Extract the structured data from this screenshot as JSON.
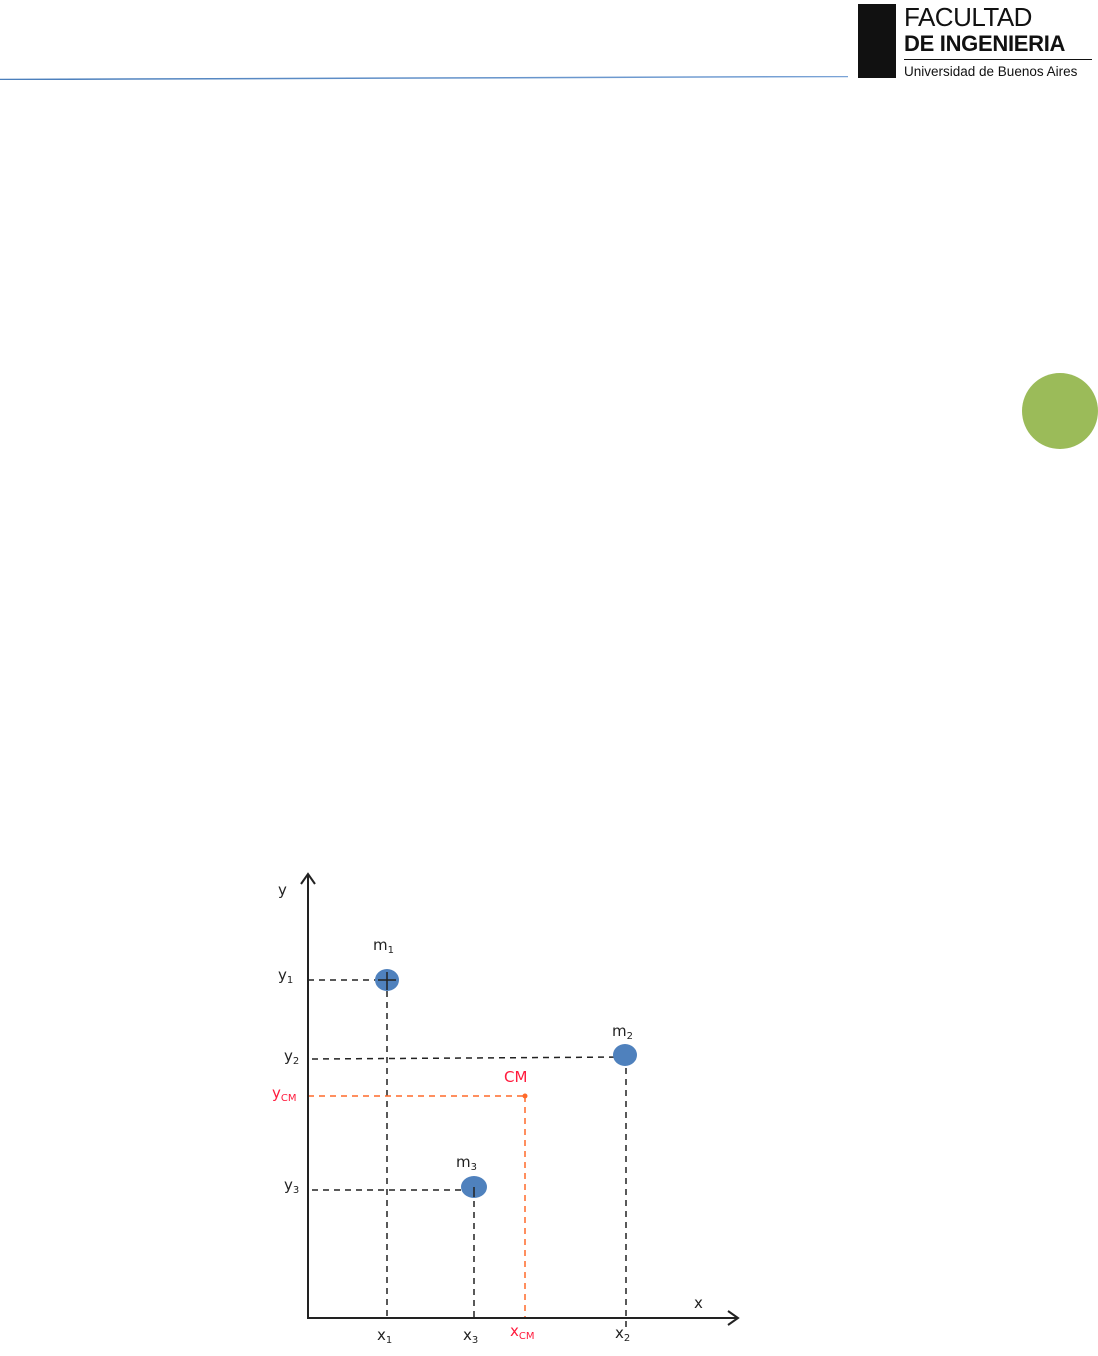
{
  "header": {
    "logo": {
      "line1": "FACULTAD",
      "line2": "DE INGENIERIA",
      "line3": "Universidad de Buenos Aires"
    },
    "line_color": "#4a7ebb"
  },
  "side_marker_color": "#9bbb59",
  "diagram": {
    "axis_x": "x",
    "axis_y": "y",
    "masses": [
      {
        "label": "m",
        "sub": "1"
      },
      {
        "label": "m",
        "sub": "2"
      },
      {
        "label": "m",
        "sub": "3"
      }
    ],
    "x_ticks": [
      {
        "label": "x",
        "sub": "1"
      },
      {
        "label": "x",
        "sub": "3"
      },
      {
        "label": "x",
        "sub": "CM"
      },
      {
        "label": "x",
        "sub": "2"
      }
    ],
    "y_ticks": [
      {
        "label": "y",
        "sub": "1"
      },
      {
        "label": "y",
        "sub": "2"
      },
      {
        "label": "y",
        "sub": "CM"
      },
      {
        "label": "y",
        "sub": "3"
      }
    ],
    "cm_label": "CM",
    "mass_color": "#4f81bd",
    "cm_color": "#ff1a3c",
    "cm_line_color": "#ff6a2a"
  }
}
